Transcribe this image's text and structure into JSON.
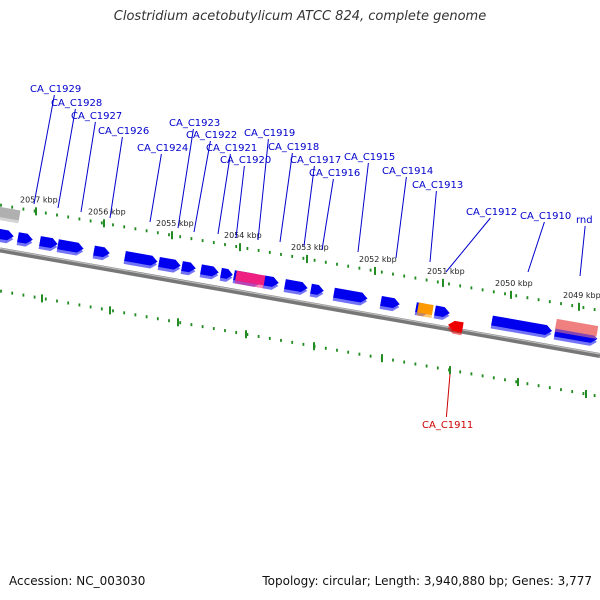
{
  "title": "Clostridium acetobutylicum ATCC 824, complete genome",
  "footer": {
    "accession": "Accession: NC_003030",
    "summary": "Topology: circular; Length: 3,940,880 bp; Genes: 3,777"
  },
  "colors": {
    "forward_gene": "#0000ee",
    "highlight_gene": "#ee1f80",
    "orange_gene": "#ff9900",
    "red_gene": "#ee0000",
    "rna_gene": "#f08080",
    "grey_gene": "#b0b0b0",
    "backbone": "#777777",
    "tick": "#228b22",
    "label_blue": "#0000cc",
    "label_red": "#cc0000"
  },
  "kbp_ticks": [
    "2057 kbp",
    "2056 kbp",
    "2055 kbp",
    "2054 kbp",
    "2053 kbp",
    "2052 kbp",
    "2051 kbp",
    "2050 kbp",
    "2049 kbp"
  ],
  "gene_labels": [
    {
      "label": "CA_C1929",
      "strand": "+"
    },
    {
      "label": "CA_C1928",
      "strand": "+"
    },
    {
      "label": "CA_C1927",
      "strand": "+"
    },
    {
      "label": "CA_C1926",
      "strand": "+"
    },
    {
      "label": "CA_C1924",
      "strand": "+"
    },
    {
      "label": "CA_C1923",
      "strand": "+"
    },
    {
      "label": "CA_C1922",
      "strand": "+"
    },
    {
      "label": "CA_C1921",
      "strand": "+"
    },
    {
      "label": "CA_C1920",
      "strand": "+"
    },
    {
      "label": "CA_C1919",
      "strand": "+"
    },
    {
      "label": "CA_C1918",
      "strand": "+"
    },
    {
      "label": "CA_C1917",
      "strand": "+"
    },
    {
      "label": "CA_C1916",
      "strand": "+"
    },
    {
      "label": "CA_C1915",
      "strand": "+"
    },
    {
      "label": "CA_C1914",
      "strand": "+"
    },
    {
      "label": "CA_C1913",
      "strand": "+"
    },
    {
      "label": "CA_C1912",
      "strand": "+"
    },
    {
      "label": "CA_C1910",
      "strand": "+"
    },
    {
      "label": "rnd",
      "strand": "+"
    },
    {
      "label": "CA_C1911",
      "strand": "-"
    }
  ]
}
